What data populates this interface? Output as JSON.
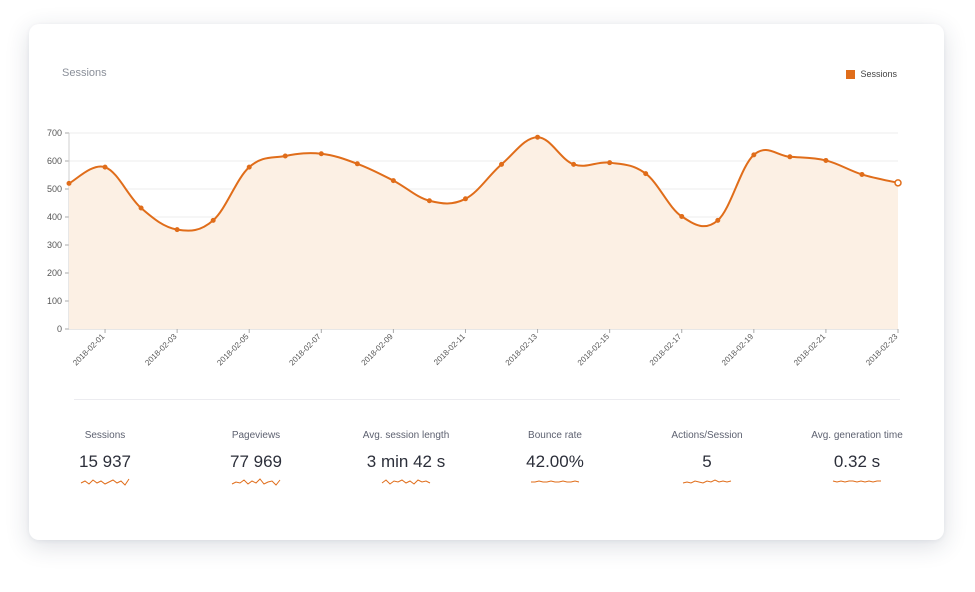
{
  "colors": {
    "accent": "#e06d1a",
    "fill": "#fcf0e4",
    "grid": "#ececec"
  },
  "chart": {
    "title": "Sessions",
    "legend_label": "Sessions"
  },
  "chart_data": {
    "type": "area",
    "title": "Sessions",
    "xlabel": "",
    "ylabel": "",
    "ylim": [
      0,
      700
    ],
    "yticks": [
      0,
      100,
      200,
      300,
      400,
      500,
      600,
      700
    ],
    "grid": true,
    "legend": "top-right",
    "x_tick_labels": [
      "2018-02-01",
      "2018-02-03",
      "2018-02-05",
      "2018-02-07",
      "2018-02-09",
      "2018-02-11",
      "2018-02-13",
      "2018-02-15",
      "2018-02-17",
      "2018-02-19",
      "2018-02-21",
      "2018-02-23"
    ],
    "x": [
      "2018-01-31",
      "2018-02-01",
      "2018-02-02",
      "2018-02-03",
      "2018-02-04",
      "2018-02-05",
      "2018-02-06",
      "2018-02-07",
      "2018-02-08",
      "2018-02-09",
      "2018-02-10",
      "2018-02-11",
      "2018-02-12",
      "2018-02-13",
      "2018-02-14",
      "2018-02-15",
      "2018-02-16",
      "2018-02-17",
      "2018-02-18",
      "2018-02-19",
      "2018-02-20",
      "2018-02-21",
      "2018-02-22",
      "2018-02-23"
    ],
    "series": [
      {
        "name": "Sessions",
        "values": [
          520,
          578,
          432,
          355,
          388,
          578,
          618,
          626,
          590,
          530,
          458,
          465,
          588,
          685,
          588,
          594,
          555,
          402,
          388,
          622,
          615,
          602,
          552,
          522
        ]
      }
    ]
  },
  "kpis": [
    {
      "label": "Sessions",
      "value": "15 937",
      "spark": [
        6,
        4,
        7,
        3,
        6,
        4,
        7,
        5,
        3,
        6,
        4,
        8,
        2
      ]
    },
    {
      "label": "Pageviews",
      "value": "77 969",
      "spark": [
        7,
        5,
        6,
        3,
        7,
        4,
        6,
        2,
        7,
        5,
        4,
        8,
        3
      ]
    },
    {
      "label": "Avg. session length",
      "value": "3 min 42 s",
      "spark": [
        6,
        3,
        7,
        4,
        5,
        3,
        6,
        4,
        7,
        3,
        5,
        4,
        6
      ]
    },
    {
      "label": "Bounce rate",
      "value": "42.00%",
      "spark": [
        5,
        5,
        4,
        5,
        5,
        4,
        5,
        5,
        4,
        5,
        5,
        4,
        5
      ]
    },
    {
      "label": "Actions/Session",
      "value": "5",
      "spark": [
        6,
        5,
        6,
        4,
        5,
        6,
        4,
        5,
        3,
        5,
        4,
        5,
        4
      ]
    },
    {
      "label": "Avg. generation time",
      "value": "0.32 s",
      "spark": [
        4,
        5,
        4,
        5,
        4,
        4,
        5,
        4,
        5,
        4,
        5,
        4,
        4
      ]
    }
  ]
}
